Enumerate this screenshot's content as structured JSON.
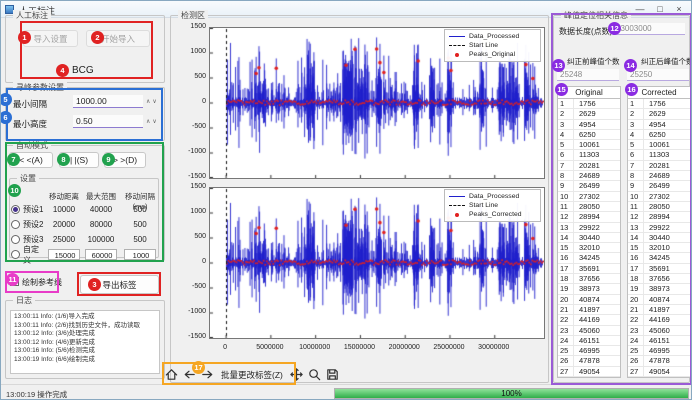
{
  "window": {
    "title": "人工标注",
    "minimize": "—",
    "maximize": "□",
    "close": "×"
  },
  "left": {
    "import_group": {
      "label": "人工标注",
      "import_settings": "导入设置",
      "start_import": "开始导入",
      "signal_type": "BCG"
    },
    "peak_params": {
      "label": "寻峰参数设置",
      "min_interval_label": "最小间隔",
      "min_interval_value": "1000.00",
      "min_height_label": "最小高度",
      "min_height_value": "0.50"
    },
    "mode_group": {
      "label": "自动模式",
      "move_left": "< <(A)",
      "stay": "| |(S)",
      "move_right": "> >(D)",
      "settings": {
        "label": "设置",
        "headers": [
          "移动距离",
          "最大范围",
          "移动间隔(ms)"
        ],
        "presets": [
          {
            "name": "预设1",
            "selected": true,
            "editable": false,
            "values": [
              "10000",
              "40000",
              "500"
            ]
          },
          {
            "name": "预设2",
            "selected": false,
            "editable": false,
            "values": [
              "20000",
              "80000",
              "500"
            ]
          },
          {
            "name": "预设3",
            "selected": false,
            "editable": false,
            "values": [
              "25000",
              "100000",
              "500"
            ]
          },
          {
            "name": "自定义",
            "selected": false,
            "editable": true,
            "values": [
              "15000",
              "60000",
              "1000"
            ]
          }
        ]
      }
    },
    "reference_line_checkbox": "绘制参考线",
    "export_button": "导出标签",
    "log_group": {
      "label": "日志",
      "entries": [
        "13:00:11 Info: (1/6)导入完成",
        "13:00:11 Info: (2/6)找到历史文件，成功读取",
        "13:00:12 Info: (3/6)处理完成",
        "13:00:12 Info: (4/6)更新完成",
        "13:00:16 Info: (5/6)检测完成",
        "13:00:19 Info: (6/6)绘制完成"
      ]
    }
  },
  "center": {
    "group_label": "检测区",
    "plots": [
      {
        "legend": [
          {
            "label": "Data_Processed",
            "style": "line"
          },
          {
            "label": "Start Line",
            "style": "dash"
          },
          {
            "label": "Peaks_Original",
            "style": "dot"
          }
        ]
      },
      {
        "legend": [
          {
            "label": "Data_Processed",
            "style": "line"
          },
          {
            "label": "Start Line",
            "style": "dash"
          },
          {
            "label": "Peaks_Corrected",
            "style": "dot"
          }
        ]
      }
    ],
    "y_ticks": [
      "1500",
      "1000",
      "500",
      "0",
      "-500",
      "-1000",
      "-1500"
    ],
    "x_ticks": [
      "0",
      "5000000",
      "10000000",
      "15000000",
      "20000000",
      "25000000",
      "30000000"
    ],
    "x_range": [
      -1800000,
      35500000
    ],
    "y_range": [
      -1600,
      1600
    ],
    "signal_color": "#2020cc",
    "peak_color": "#e02020",
    "toolbar": {
      "batch_button": "批量更改标签(Z)"
    }
  },
  "right": {
    "group_label": "峰值定位相关信息",
    "data_length_label": "数据长度(点数)",
    "data_length_value": "33003000",
    "pre_count_label": "纠正前峰值个数",
    "pre_count_value": "25248",
    "post_count_label": "纠正后峰值个数",
    "post_count_value": "25250",
    "original_header": "Original",
    "corrected_header": "Corrected",
    "peak_values": [
      1756,
      2629,
      4954,
      6250,
      10061,
      11303,
      20281,
      24689,
      26499,
      27302,
      28050,
      28994,
      29922,
      30440,
      32010,
      34245,
      35691,
      37656,
      38973,
      40874,
      41897,
      44169,
      45060,
      46151,
      46995,
      47878,
      49054
    ]
  },
  "statusbar": {
    "status": "13:00:19 操作完成",
    "progress_label": "100%",
    "progress_value": 100
  },
  "annotations": {
    "badges": [
      "1",
      "2",
      "3",
      "4",
      "5",
      "6",
      "7",
      "8",
      "9",
      "10",
      "11",
      "12",
      "13",
      "14",
      "15",
      "16",
      "17"
    ]
  }
}
